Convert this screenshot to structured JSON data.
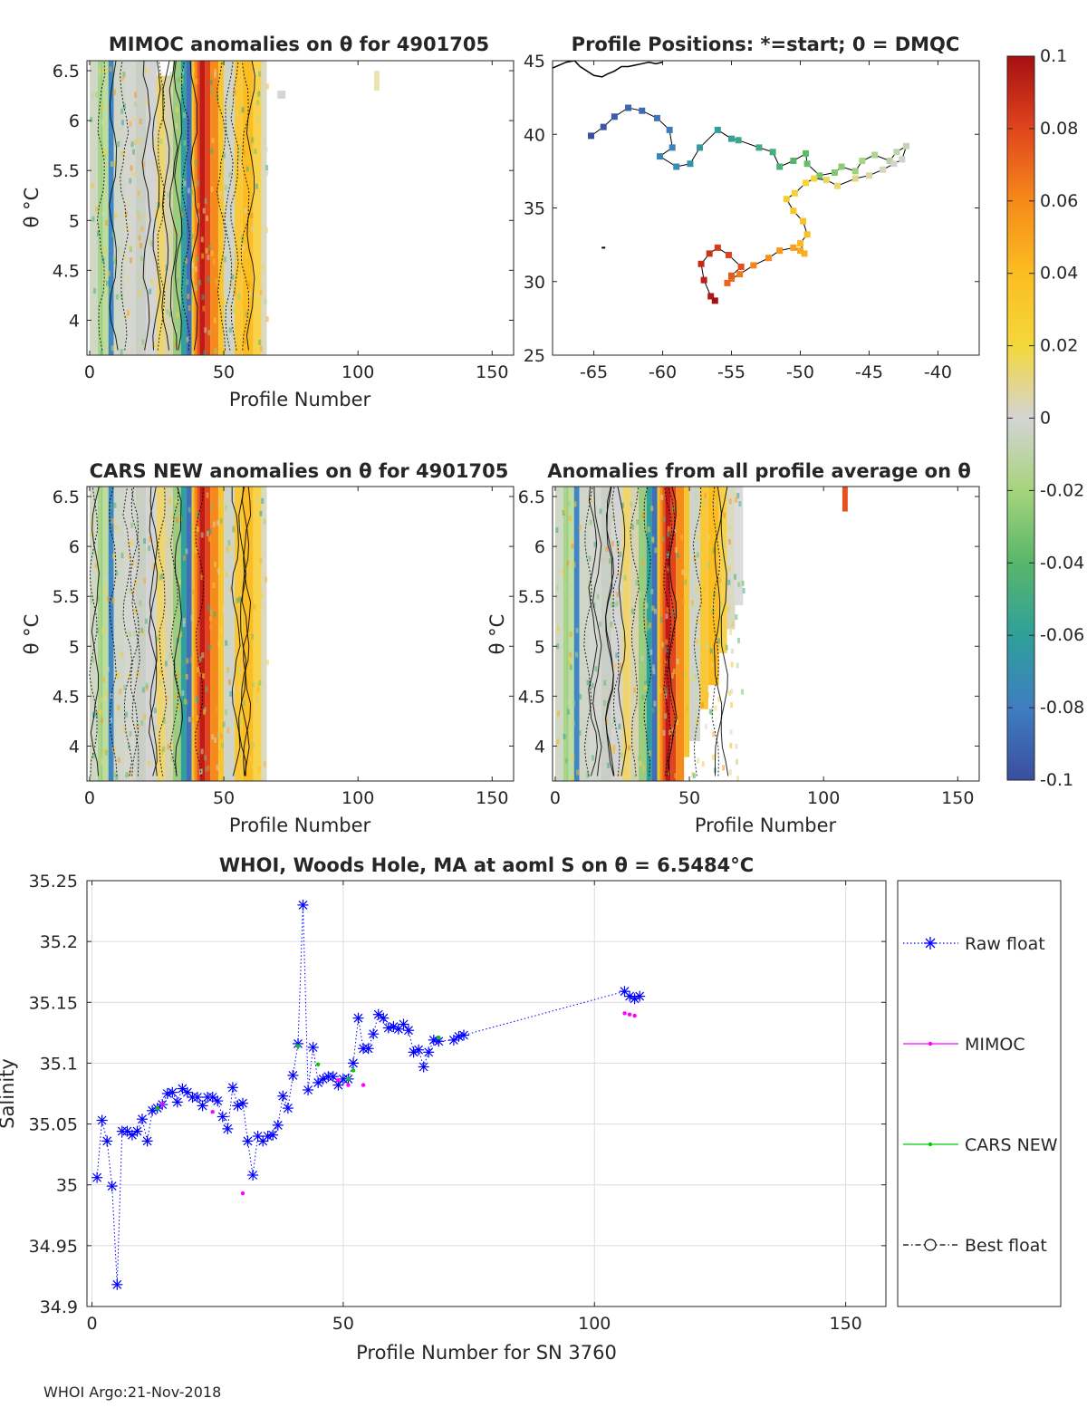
{
  "footer": "WHOI Argo:21-Nov-2018",
  "colorbar": {
    "ticks": [
      "0.1",
      "0.08",
      "0.06",
      "0.04",
      "0.02",
      "0",
      "-0.02",
      "-0.04",
      "-0.06",
      "-0.08",
      "-0.1"
    ],
    "min": -0.1,
    "max": 0.1,
    "colors": [
      "#3a4ea0",
      "#3f7dc0",
      "#2fa09a",
      "#58b66a",
      "#a6d47c",
      "#d4d4d4",
      "#f3d83a",
      "#fbbd22",
      "#f68a1a",
      "#e0451d",
      "#a60f12"
    ]
  },
  "chart_data": [
    {
      "id": "mimoc",
      "type": "heatmap",
      "title": "MIMOC anomalies on θ  for 4901705",
      "xlabel": "Profile Number",
      "ylabel": "θ °C",
      "xlim": [
        -1,
        158
      ],
      "ylim": [
        3.65,
        6.6
      ],
      "xticks": [
        "0",
        "50",
        "100",
        "150"
      ],
      "yticks": [
        "4",
        "4.5",
        "5",
        "5.5",
        "6",
        "6.5"
      ]
    },
    {
      "id": "positions",
      "type": "scatter",
      "title": "Profile Positions: *=start; 0 = DMQC",
      "xlim": [
        -68,
        -37
      ],
      "ylim": [
        25,
        45
      ],
      "xticks": [
        "-65",
        "-60",
        "-55",
        "-50",
        "-45",
        "-40"
      ],
      "yticks": [
        "25",
        "30",
        "35",
        "40",
        "45"
      ],
      "track_lon": [
        -65.2,
        -64.3,
        -63.5,
        -62.5,
        -61.5,
        -60.4,
        -59.5,
        -59.3,
        -60.2,
        -59.0,
        -58.0,
        -57.3,
        -56.0,
        -55.0,
        -54.5,
        -53.0,
        -52.0,
        -51.5,
        -50.5,
        -49.6,
        -49.5,
        -48.6,
        -47.5,
        -47.0,
        -46.0,
        -45.5,
        -44.6,
        -43.5,
        -43.0,
        -42.3,
        -42.6,
        -43.2,
        -44.0,
        -45.0,
        -46.0,
        -47.3,
        -48.1,
        -49.0,
        -49.6,
        -50.4,
        -51.0,
        -50.5,
        -49.8,
        -49.5,
        -50.0,
        -49.7,
        -50.0,
        -50.5,
        -51.5,
        -52.3,
        -53.4,
        -54.4,
        -55.0,
        -55.3,
        -55.0,
        -54.3,
        -55.2,
        -56.0,
        -56.6,
        -57.2,
        -57.0,
        -56.5,
        -56.2
      ],
      "track_lat": [
        39.9,
        40.5,
        41.2,
        41.8,
        41.6,
        41.1,
        40.3,
        39.1,
        38.5,
        37.8,
        38.0,
        39.1,
        40.3,
        39.7,
        39.6,
        39.1,
        38.8,
        37.8,
        38.2,
        38.7,
        38.0,
        37.2,
        37.4,
        37.8,
        37.5,
        38.2,
        38.6,
        38.2,
        38.8,
        39.2,
        38.3,
        38.0,
        37.6,
        37.2,
        37.0,
        36.5,
        36.9,
        37.0,
        36.7,
        36.0,
        35.6,
        34.8,
        34.1,
        33.2,
        32.6,
        31.9,
        32.1,
        32.3,
        32.1,
        31.6,
        31.1,
        30.5,
        30.2,
        29.9,
        30.4,
        31.0,
        31.8,
        32.3,
        31.9,
        31.2,
        30.1,
        29.0,
        28.7
      ],
      "coast_lon": [
        -68,
        -67.0,
        -66.4,
        -66.0,
        -65.5,
        -65.0,
        -64.4,
        -64.0,
        -63.5,
        -63.0,
        -62.5,
        -62.0,
        -61.5,
        -61.0,
        -60.5,
        -60.0
      ],
      "coast_lat": [
        44.5,
        44.9,
        45.0,
        44.6,
        44.3,
        44.0,
        43.9,
        44.1,
        44.3,
        44.6,
        44.6,
        44.7,
        44.8,
        44.9,
        44.8,
        44.9
      ]
    },
    {
      "id": "cars",
      "type": "heatmap",
      "title": "CARS NEW anomalies on θ for 4901705",
      "xlabel": "Profile Number",
      "ylabel": "θ °C",
      "xlim": [
        -1,
        158
      ],
      "ylim": [
        3.65,
        6.6
      ],
      "xticks": [
        "0",
        "50",
        "100",
        "150"
      ],
      "yticks": [
        "4",
        "4.5",
        "5",
        "5.5",
        "6",
        "6.5"
      ]
    },
    {
      "id": "allavg",
      "type": "heatmap",
      "title": "Anomalies from all profile average on θ",
      "xlabel": "Profile Number",
      "ylabel": "θ °C",
      "xlim": [
        -1,
        158
      ],
      "ylim": [
        3.65,
        6.6
      ],
      "xticks": [
        "0",
        "50",
        "100",
        "150"
      ],
      "yticks": [
        "4",
        "4.5",
        "5",
        "5.5",
        "6",
        "6.5"
      ]
    },
    {
      "id": "salinity",
      "type": "line",
      "title": "WHOI, Woods Hole, MA at aoml S on θ = 6.5484°C",
      "xlabel": "Profile Number for SN 3760",
      "ylabel": "Salinity",
      "xlim": [
        -1,
        158
      ],
      "ylim": [
        34.9,
        35.25
      ],
      "xticks": [
        "0",
        "50",
        "100",
        "150"
      ],
      "yticks": [
        "34.9",
        "34.95",
        "35",
        "35.05",
        "35.1",
        "35.15",
        "35.2",
        "35.25"
      ],
      "legend": [
        "Raw float",
        "MIMOC",
        "CARS NEW",
        "Best float"
      ],
      "series": [
        {
          "name": "Raw float",
          "color": "#0000ff",
          "x": [
            1,
            2,
            3,
            4,
            5,
            6,
            7,
            8,
            9,
            10,
            11,
            12,
            13,
            14,
            15,
            16,
            17,
            18,
            19,
            20,
            21,
            22,
            23,
            24,
            25,
            26,
            27,
            28,
            29,
            30,
            31,
            32,
            33,
            34,
            35,
            36,
            37,
            38,
            39,
            40,
            41,
            42,
            43,
            44,
            45,
            46,
            47,
            48,
            49,
            50,
            51,
            52,
            53,
            54,
            55,
            56,
            57,
            58,
            59,
            60,
            61,
            62,
            63,
            64,
            65,
            66,
            67,
            68,
            69,
            72,
            73,
            74,
            106,
            107,
            108,
            109
          ],
          "y": [
            35.006,
            35.053,
            35.036,
            34.999,
            34.918,
            35.044,
            35.044,
            35.041,
            35.044,
            35.054,
            35.036,
            35.061,
            35.063,
            35.066,
            35.075,
            35.076,
            35.068,
            35.079,
            35.076,
            35.072,
            35.072,
            35.065,
            35.072,
            35.072,
            35.069,
            35.056,
            35.046,
            35.08,
            35.065,
            35.067,
            35.036,
            35.008,
            35.04,
            35.036,
            35.04,
            35.041,
            35.049,
            35.073,
            35.063,
            35.09,
            35.116,
            35.23,
            35.078,
            35.113,
            35.084,
            35.087,
            35.089,
            35.089,
            35.082,
            35.087,
            35.087,
            35.1,
            35.137,
            35.112,
            35.112,
            35.124,
            35.14,
            35.137,
            35.129,
            35.13,
            35.128,
            35.132,
            35.127,
            35.109,
            35.111,
            35.097,
            35.109,
            35.119,
            35.118,
            35.119,
            35.122,
            35.123,
            35.159,
            35.155,
            35.153,
            35.155
          ]
        },
        {
          "name": "MIMOC",
          "color": "#ff00ff",
          "x": [
            14,
            24,
            30,
            49,
            51,
            54,
            106,
            107,
            108
          ],
          "y": [
            35.066,
            35.06,
            34.993,
            35.086,
            35.082,
            35.082,
            35.141,
            35.14,
            35.139
          ]
        },
        {
          "name": "CARS NEW",
          "color": "#00cc00",
          "x": [
            13,
            41,
            45,
            51,
            52,
            69
          ],
          "y": [
            35.063,
            35.114,
            35.099,
            35.087,
            35.094,
            35.121
          ]
        }
      ]
    }
  ]
}
